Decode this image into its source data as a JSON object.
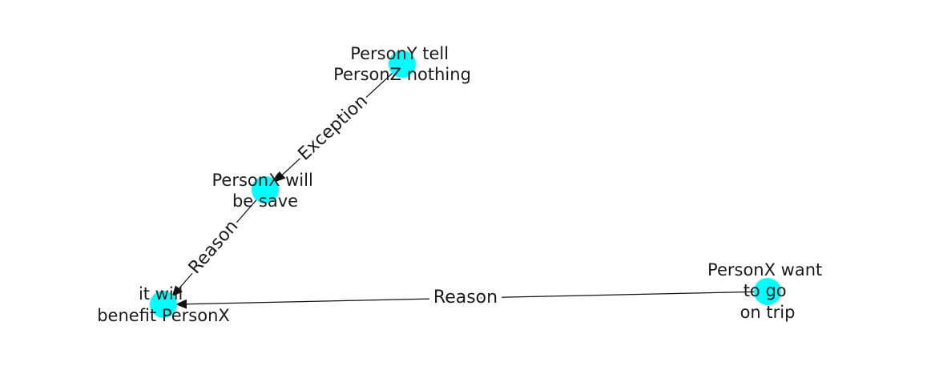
{
  "colors": {
    "node_fill": "#00ffff",
    "edge": "#111111",
    "label_bg": "#ffffff",
    "text": "#1a1a1a"
  },
  "nodes": [
    {
      "id": "n1",
      "label_lines": [
        "PersonY tell",
        "PersonZ nothing"
      ]
    },
    {
      "id": "n2",
      "label_lines": [
        "PersonX will",
        "be save"
      ]
    },
    {
      "id": "n3",
      "label_lines": [
        "it will",
        "benefit PersonX"
      ]
    },
    {
      "id": "n4",
      "label_lines": [
        "PersonX want",
        "to go",
        "on trip"
      ]
    }
  ],
  "edges": [
    {
      "id": "e1",
      "source": "n1",
      "target": "n2",
      "label": "Exception"
    },
    {
      "id": "e2",
      "source": "n2",
      "target": "n3",
      "label": "Reason"
    },
    {
      "id": "e3",
      "source": "n4",
      "target": "n3",
      "label": "Reason"
    }
  ]
}
